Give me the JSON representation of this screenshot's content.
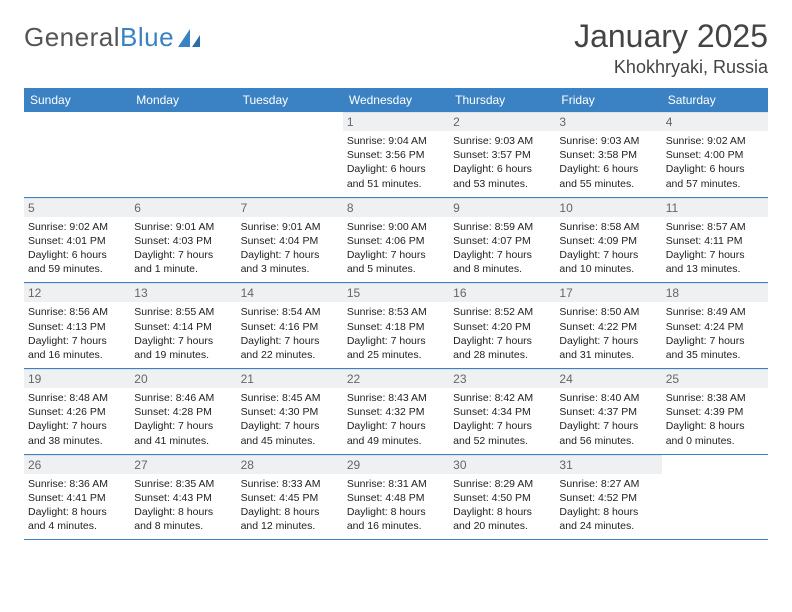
{
  "brand": {
    "part1": "General",
    "part2": "Blue",
    "accent": "#3b82c4"
  },
  "title": {
    "month_year": "January 2025",
    "location": "Khokhryaki, Russia"
  },
  "colors": {
    "header_bg": "#3b82c4",
    "header_text": "#ffffff",
    "daynum_bg": "#eef0f2",
    "rule": "#3b82c4"
  },
  "dow": [
    "Sunday",
    "Monday",
    "Tuesday",
    "Wednesday",
    "Thursday",
    "Friday",
    "Saturday"
  ],
  "weeks": [
    [
      null,
      null,
      null,
      {
        "n": "1",
        "sr": "Sunrise: 9:04 AM",
        "ss": "Sunset: 3:56 PM",
        "d1": "Daylight: 6 hours",
        "d2": "and 51 minutes."
      },
      {
        "n": "2",
        "sr": "Sunrise: 9:03 AM",
        "ss": "Sunset: 3:57 PM",
        "d1": "Daylight: 6 hours",
        "d2": "and 53 minutes."
      },
      {
        "n": "3",
        "sr": "Sunrise: 9:03 AM",
        "ss": "Sunset: 3:58 PM",
        "d1": "Daylight: 6 hours",
        "d2": "and 55 minutes."
      },
      {
        "n": "4",
        "sr": "Sunrise: 9:02 AM",
        "ss": "Sunset: 4:00 PM",
        "d1": "Daylight: 6 hours",
        "d2": "and 57 minutes."
      }
    ],
    [
      {
        "n": "5",
        "sr": "Sunrise: 9:02 AM",
        "ss": "Sunset: 4:01 PM",
        "d1": "Daylight: 6 hours",
        "d2": "and 59 minutes."
      },
      {
        "n": "6",
        "sr": "Sunrise: 9:01 AM",
        "ss": "Sunset: 4:03 PM",
        "d1": "Daylight: 7 hours",
        "d2": "and 1 minute."
      },
      {
        "n": "7",
        "sr": "Sunrise: 9:01 AM",
        "ss": "Sunset: 4:04 PM",
        "d1": "Daylight: 7 hours",
        "d2": "and 3 minutes."
      },
      {
        "n": "8",
        "sr": "Sunrise: 9:00 AM",
        "ss": "Sunset: 4:06 PM",
        "d1": "Daylight: 7 hours",
        "d2": "and 5 minutes."
      },
      {
        "n": "9",
        "sr": "Sunrise: 8:59 AM",
        "ss": "Sunset: 4:07 PM",
        "d1": "Daylight: 7 hours",
        "d2": "and 8 minutes."
      },
      {
        "n": "10",
        "sr": "Sunrise: 8:58 AM",
        "ss": "Sunset: 4:09 PM",
        "d1": "Daylight: 7 hours",
        "d2": "and 10 minutes."
      },
      {
        "n": "11",
        "sr": "Sunrise: 8:57 AM",
        "ss": "Sunset: 4:11 PM",
        "d1": "Daylight: 7 hours",
        "d2": "and 13 minutes."
      }
    ],
    [
      {
        "n": "12",
        "sr": "Sunrise: 8:56 AM",
        "ss": "Sunset: 4:13 PM",
        "d1": "Daylight: 7 hours",
        "d2": "and 16 minutes."
      },
      {
        "n": "13",
        "sr": "Sunrise: 8:55 AM",
        "ss": "Sunset: 4:14 PM",
        "d1": "Daylight: 7 hours",
        "d2": "and 19 minutes."
      },
      {
        "n": "14",
        "sr": "Sunrise: 8:54 AM",
        "ss": "Sunset: 4:16 PM",
        "d1": "Daylight: 7 hours",
        "d2": "and 22 minutes."
      },
      {
        "n": "15",
        "sr": "Sunrise: 8:53 AM",
        "ss": "Sunset: 4:18 PM",
        "d1": "Daylight: 7 hours",
        "d2": "and 25 minutes."
      },
      {
        "n": "16",
        "sr": "Sunrise: 8:52 AM",
        "ss": "Sunset: 4:20 PM",
        "d1": "Daylight: 7 hours",
        "d2": "and 28 minutes."
      },
      {
        "n": "17",
        "sr": "Sunrise: 8:50 AM",
        "ss": "Sunset: 4:22 PM",
        "d1": "Daylight: 7 hours",
        "d2": "and 31 minutes."
      },
      {
        "n": "18",
        "sr": "Sunrise: 8:49 AM",
        "ss": "Sunset: 4:24 PM",
        "d1": "Daylight: 7 hours",
        "d2": "and 35 minutes."
      }
    ],
    [
      {
        "n": "19",
        "sr": "Sunrise: 8:48 AM",
        "ss": "Sunset: 4:26 PM",
        "d1": "Daylight: 7 hours",
        "d2": "and 38 minutes."
      },
      {
        "n": "20",
        "sr": "Sunrise: 8:46 AM",
        "ss": "Sunset: 4:28 PM",
        "d1": "Daylight: 7 hours",
        "d2": "and 41 minutes."
      },
      {
        "n": "21",
        "sr": "Sunrise: 8:45 AM",
        "ss": "Sunset: 4:30 PM",
        "d1": "Daylight: 7 hours",
        "d2": "and 45 minutes."
      },
      {
        "n": "22",
        "sr": "Sunrise: 8:43 AM",
        "ss": "Sunset: 4:32 PM",
        "d1": "Daylight: 7 hours",
        "d2": "and 49 minutes."
      },
      {
        "n": "23",
        "sr": "Sunrise: 8:42 AM",
        "ss": "Sunset: 4:34 PM",
        "d1": "Daylight: 7 hours",
        "d2": "and 52 minutes."
      },
      {
        "n": "24",
        "sr": "Sunrise: 8:40 AM",
        "ss": "Sunset: 4:37 PM",
        "d1": "Daylight: 7 hours",
        "d2": "and 56 minutes."
      },
      {
        "n": "25",
        "sr": "Sunrise: 8:38 AM",
        "ss": "Sunset: 4:39 PM",
        "d1": "Daylight: 8 hours",
        "d2": "and 0 minutes."
      }
    ],
    [
      {
        "n": "26",
        "sr": "Sunrise: 8:36 AM",
        "ss": "Sunset: 4:41 PM",
        "d1": "Daylight: 8 hours",
        "d2": "and 4 minutes."
      },
      {
        "n": "27",
        "sr": "Sunrise: 8:35 AM",
        "ss": "Sunset: 4:43 PM",
        "d1": "Daylight: 8 hours",
        "d2": "and 8 minutes."
      },
      {
        "n": "28",
        "sr": "Sunrise: 8:33 AM",
        "ss": "Sunset: 4:45 PM",
        "d1": "Daylight: 8 hours",
        "d2": "and 12 minutes."
      },
      {
        "n": "29",
        "sr": "Sunrise: 8:31 AM",
        "ss": "Sunset: 4:48 PM",
        "d1": "Daylight: 8 hours",
        "d2": "and 16 minutes."
      },
      {
        "n": "30",
        "sr": "Sunrise: 8:29 AM",
        "ss": "Sunset: 4:50 PM",
        "d1": "Daylight: 8 hours",
        "d2": "and 20 minutes."
      },
      {
        "n": "31",
        "sr": "Sunrise: 8:27 AM",
        "ss": "Sunset: 4:52 PM",
        "d1": "Daylight: 8 hours",
        "d2": "and 24 minutes."
      },
      null
    ]
  ]
}
